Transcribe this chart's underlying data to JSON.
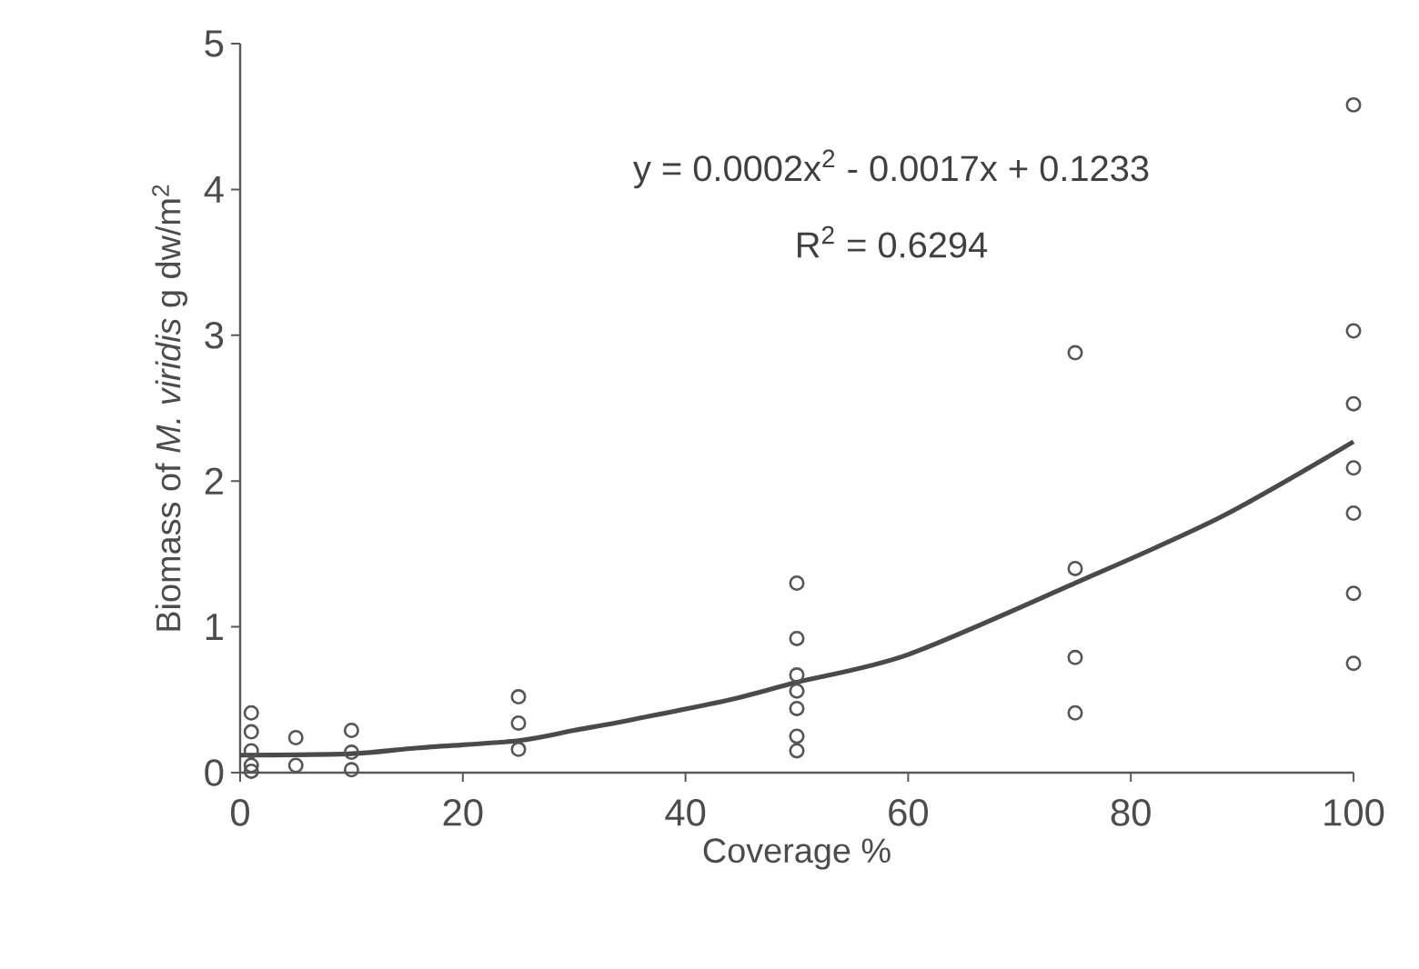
{
  "chart_data": {
    "type": "scatter",
    "xlabel": "Coverage %",
    "ylabel": "Biomass of *M. viridis* g dw/m$^{2}$",
    "annotations": [
      "y = 0.0002x$^{2}$ - 0.0017x + 0.1233",
      "R$^{2}$ = 0.6294"
    ],
    "xlim": [
      0,
      100
    ],
    "ylim": [
      0,
      5
    ],
    "xticks": [
      0,
      20,
      40,
      60,
      80,
      100
    ],
    "yticks": [
      0,
      1,
      2,
      3,
      4,
      5
    ],
    "series": [
      {
        "marker": "circle",
        "color": "#555555",
        "x": [
          1,
          1,
          1,
          1,
          1,
          5,
          5,
          10,
          10,
          10,
          25,
          25,
          25,
          50,
          50,
          50,
          50,
          50,
          50,
          50,
          75,
          75,
          75,
          75,
          100,
          100,
          100,
          100,
          100,
          100,
          100
        ],
        "values": [
          0.41,
          0.28,
          0.15,
          0.05,
          0.01,
          0.24,
          0.05,
          0.29,
          0.14,
          0.02,
          0.52,
          0.34,
          0.16,
          1.3,
          0.92,
          0.67,
          0.56,
          0.44,
          0.25,
          0.15,
          2.88,
          1.4,
          0.79,
          0.41,
          4.58,
          3.03,
          2.53,
          2.09,
          1.78,
          1.23,
          0.75
        ]
      },
      {
        "type": "line",
        "marker": "none",
        "color": "#4a4a4a",
        "x": [
          0,
          10,
          16,
          25,
          30,
          35,
          44,
          50,
          60,
          75,
          88,
          100
        ],
        "values": [
          0.12,
          0.13,
          0.17,
          0.22,
          0.29,
          0.36,
          0.5,
          0.62,
          0.81,
          1.3,
          1.75,
          2.27
        ]
      }
    ]
  }
}
